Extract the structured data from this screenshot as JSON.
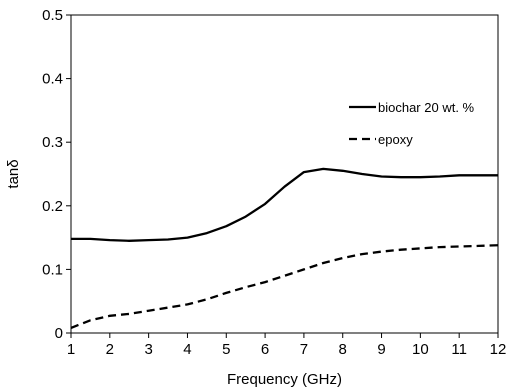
{
  "chart_data": {
    "type": "line",
    "title": "",
    "xlabel": "Frequency (GHz)",
    "ylabel": "tanδ",
    "xlim": [
      1,
      12
    ],
    "ylim": [
      0,
      0.5
    ],
    "xticks": [
      1,
      2,
      3,
      4,
      5,
      6,
      7,
      8,
      9,
      10,
      11,
      12
    ],
    "yticks": [
      0,
      0.1,
      0.2,
      0.3,
      0.4,
      0.5
    ],
    "ytick_labels": [
      "0",
      "0.1",
      "0.2",
      "0.3",
      "0.4",
      "0.5"
    ],
    "grid": false,
    "legend_position": "right",
    "series": [
      {
        "name": "biochar 20 wt. %",
        "style": "solid",
        "color": "#000000",
        "x": [
          1,
          1.5,
          2,
          2.5,
          3,
          3.5,
          4,
          4.5,
          5,
          5.5,
          6,
          6.5,
          7,
          7.5,
          8,
          8.5,
          9,
          9.5,
          10,
          10.5,
          11,
          11.5,
          12
        ],
        "y": [
          0.148,
          0.148,
          0.146,
          0.145,
          0.146,
          0.147,
          0.15,
          0.157,
          0.168,
          0.183,
          0.203,
          0.23,
          0.253,
          0.258,
          0.255,
          0.25,
          0.246,
          0.245,
          0.245,
          0.246,
          0.248,
          0.248,
          0.248
        ]
      },
      {
        "name": "epoxy",
        "style": "dashed",
        "color": "#000000",
        "x": [
          1,
          1.5,
          2,
          2.5,
          3,
          3.5,
          4,
          4.5,
          5,
          5.5,
          6,
          6.5,
          7,
          7.5,
          8,
          8.5,
          9,
          9.5,
          10,
          10.5,
          11,
          11.5,
          12
        ],
        "y": [
          0.008,
          0.02,
          0.027,
          0.03,
          0.035,
          0.04,
          0.045,
          0.053,
          0.063,
          0.072,
          0.08,
          0.09,
          0.1,
          0.11,
          0.118,
          0.124,
          0.128,
          0.131,
          0.133,
          0.135,
          0.136,
          0.137,
          0.138
        ]
      }
    ]
  }
}
